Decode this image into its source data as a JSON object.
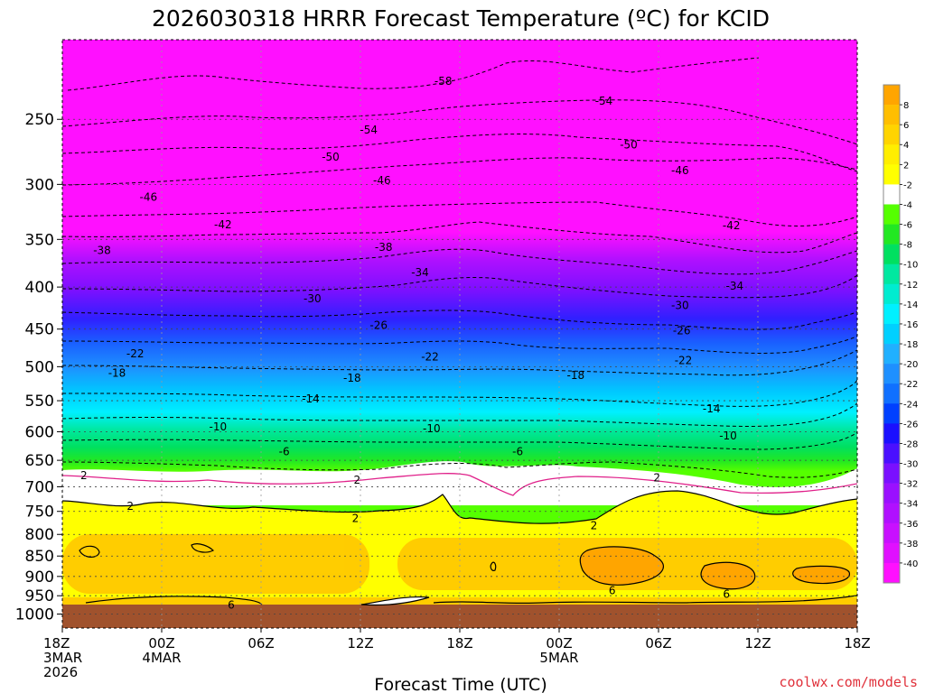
{
  "chart_data": {
    "type": "heatmap",
    "title": "2026030318 HRRR Forecast Temperature (ºC) for KCID",
    "xlabel": "Forecast Time (UTC)",
    "ylabel": "",
    "credit": "coolwx.com/models",
    "y_axis": {
      "scale": "log",
      "inverted": true,
      "range": [
        1040,
        200
      ],
      "ticks": [
        250,
        300,
        350,
        400,
        450,
        500,
        550,
        600,
        650,
        700,
        750,
        800,
        850,
        900,
        950,
        1000
      ]
    },
    "x_axis": {
      "range_hours": [
        0,
        48
      ],
      "ticks": [
        {
          "h": 0,
          "lines": [
            "18Z",
            "3MAR",
            "2026"
          ]
        },
        {
          "h": 6,
          "lines": [
            "00Z",
            "4MAR"
          ]
        },
        {
          "h": 12,
          "lines": [
            "06Z"
          ]
        },
        {
          "h": 18,
          "lines": [
            "12Z"
          ]
        },
        {
          "h": 24,
          "lines": [
            "18Z"
          ]
        },
        {
          "h": 30,
          "lines": [
            "00Z",
            "5MAR"
          ]
        },
        {
          "h": 36,
          "lines": [
            "06Z"
          ]
        },
        {
          "h": 42,
          "lines": [
            "12Z"
          ]
        },
        {
          "h": 48,
          "lines": [
            "18Z"
          ]
        }
      ]
    },
    "colorbar": {
      "labels": [
        "8",
        "6",
        "4",
        "2",
        "-2",
        "-4",
        "-6",
        "-8",
        "-10",
        "-12",
        "-14",
        "-16",
        "-18",
        "-20",
        "-22",
        "-24",
        "-26",
        "-28",
        "-30",
        "-32",
        "-34",
        "-36",
        "-38",
        "-40"
      ],
      "colors": [
        "#ffa500",
        "#ffbe00",
        "#ffd400",
        "#ffee00",
        "#ffff00",
        "#ffffff",
        "#55ff00",
        "#22e822",
        "#00e060",
        "#00e8a0",
        "#00ecd0",
        "#00f0ff",
        "#00d0ff",
        "#20b0ff",
        "#1e90ff",
        "#1070ff",
        "#0040ff",
        "#1a10ff",
        "#4a10ff",
        "#7a10ff",
        "#9a10ff",
        "#b010ff",
        "#c810ff",
        "#e010ff",
        "#ff10ff"
      ]
    },
    "ground_color": "#a0522d",
    "grid": "dotted",
    "isotherms": [
      {
        "label": "-58",
        "h": 23.0,
        "p": 224
      },
      {
        "label": "-54",
        "h": 18.5,
        "p": 257
      },
      {
        "label": "-54",
        "h": 32.7,
        "p": 237
      },
      {
        "label": "-50",
        "h": 16.2,
        "p": 277
      },
      {
        "label": "-50",
        "h": 34.2,
        "p": 268
      },
      {
        "label": "-46",
        "h": 5.2,
        "p": 310
      },
      {
        "label": "-46",
        "h": 19.3,
        "p": 296
      },
      {
        "label": "-46",
        "h": 37.3,
        "p": 288
      },
      {
        "label": "-42",
        "h": 9.7,
        "p": 335
      },
      {
        "label": "-42",
        "h": 40.4,
        "p": 336
      },
      {
        "label": "-38",
        "h": 2.4,
        "p": 360
      },
      {
        "label": "-38",
        "h": 19.4,
        "p": 357
      },
      {
        "label": "-34",
        "h": 21.6,
        "p": 383
      },
      {
        "label": "-34",
        "h": 40.6,
        "p": 398
      },
      {
        "label": "-30",
        "h": 15.1,
        "p": 412
      },
      {
        "label": "-30",
        "h": 37.3,
        "p": 420
      },
      {
        "label": "-26",
        "h": 19.1,
        "p": 444
      },
      {
        "label": "-26",
        "h": 37.4,
        "p": 451
      },
      {
        "label": "-22",
        "h": 4.4,
        "p": 481
      },
      {
        "label": "-22",
        "h": 22.2,
        "p": 485
      },
      {
        "label": "-22",
        "h": 37.5,
        "p": 490
      },
      {
        "label": "-18",
        "h": 3.3,
        "p": 508
      },
      {
        "label": "-18",
        "h": 17.5,
        "p": 515
      },
      {
        "label": "-18",
        "h": 31.0,
        "p": 511
      },
      {
        "label": "-14",
        "h": 15.0,
        "p": 546
      },
      {
        "label": "-14",
        "h": 39.2,
        "p": 561
      },
      {
        "label": "-10",
        "h": 9.4,
        "p": 590
      },
      {
        "label": "-10",
        "h": 22.3,
        "p": 593
      },
      {
        "label": "-10",
        "h": 40.2,
        "p": 605
      },
      {
        "label": "-6",
        "h": 13.4,
        "p": 633
      },
      {
        "label": "-6",
        "h": 27.5,
        "p": 633
      },
      {
        "label": "2",
        "h": 1.3,
        "p": 677
      },
      {
        "label": "2",
        "h": 17.8,
        "p": 685
      },
      {
        "label": "2",
        "h": 35.9,
        "p": 681
      },
      {
        "label": "2",
        "h": 4.1,
        "p": 737
      },
      {
        "label": "2",
        "h": 17.7,
        "p": 763
      },
      {
        "label": "2",
        "h": 32.1,
        "p": 779
      },
      {
        "label": "6",
        "h": 10.2,
        "p": 972
      },
      {
        "label": "6",
        "h": 33.2,
        "p": 934
      },
      {
        "label": "6",
        "h": 40.1,
        "p": 944
      }
    ]
  }
}
